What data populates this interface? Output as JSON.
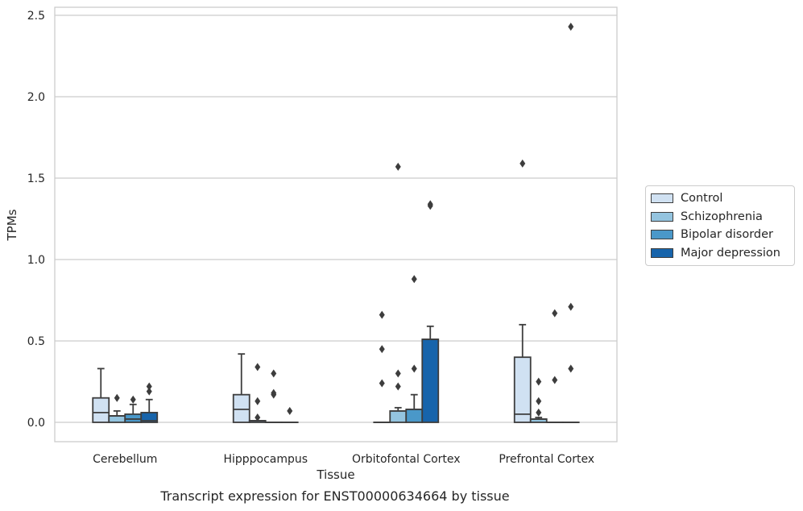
{
  "chart_data": {
    "type": "box",
    "title": "Transcript expression for ENST00000634664 by tissue",
    "xlabel": "Tissue",
    "ylabel": "TPMs",
    "ylim": [
      -0.12,
      2.56
    ],
    "yticks": [
      0.0,
      0.5,
      1.0,
      1.5,
      2.0,
      2.5
    ],
    "ytick_labels": [
      "0.0",
      "0.5",
      "1.0",
      "1.5",
      "2.0",
      "2.5"
    ],
    "grid": true,
    "legend_position": "right",
    "categories": [
      "Cerebellum",
      "Hipppocampus",
      "Orbitofontal Cortex",
      "Prefrontal Cortex"
    ],
    "series": [
      {
        "name": "Control",
        "color": "#d0e1f2",
        "boxes": [
          {
            "q1": 0.0,
            "median": 0.06,
            "q3": 0.15,
            "whisker_low": 0.0,
            "whisker_high": 0.33,
            "outliers": []
          },
          {
            "q1": 0.0,
            "median": 0.08,
            "q3": 0.17,
            "whisker_low": 0.0,
            "whisker_high": 0.42,
            "outliers": []
          },
          {
            "q1": 0.0,
            "median": 0.0,
            "q3": 0.0,
            "whisker_low": 0.0,
            "whisker_high": 0.0,
            "outliers": [
              0.24,
              0.45,
              0.66
            ]
          },
          {
            "q1": 0.0,
            "median": 0.05,
            "q3": 0.4,
            "whisker_low": 0.0,
            "whisker_high": 0.6,
            "outliers": [
              1.59
            ]
          }
        ]
      },
      {
        "name": "Schizophrenia",
        "color": "#94c4df",
        "boxes": [
          {
            "q1": 0.0,
            "median": 0.04,
            "q3": 0.04,
            "whisker_low": 0.0,
            "whisker_high": 0.07,
            "outliers": [
              0.15
            ]
          },
          {
            "q1": 0.0,
            "median": 0.01,
            "q3": 0.01,
            "whisker_low": 0.0,
            "whisker_high": 0.01,
            "outliers": [
              0.03,
              0.13,
              0.34
            ]
          },
          {
            "q1": 0.0,
            "median": 0.07,
            "q3": 0.07,
            "whisker_low": 0.0,
            "whisker_high": 0.09,
            "outliers": [
              0.22,
              0.3,
              1.57
            ]
          },
          {
            "q1": 0.0,
            "median": 0.02,
            "q3": 0.02,
            "whisker_low": 0.0,
            "whisker_high": 0.03,
            "outliers": [
              0.06,
              0.13,
              0.25
            ]
          }
        ]
      },
      {
        "name": "Bipolar disorder",
        "color": "#4a98c9",
        "boxes": [
          {
            "q1": 0.0,
            "median": 0.02,
            "q3": 0.05,
            "whisker_low": 0.0,
            "whisker_high": 0.11,
            "outliers": [
              0.14
            ]
          },
          {
            "q1": 0.0,
            "median": 0.0,
            "q3": 0.0,
            "whisker_low": 0.0,
            "whisker_high": 0.0,
            "outliers": [
              0.17,
              0.18,
              0.3
            ]
          },
          {
            "q1": 0.0,
            "median": 0.08,
            "q3": 0.08,
            "whisker_low": 0.0,
            "whisker_high": 0.17,
            "outliers": [
              0.33,
              0.88
            ]
          },
          {
            "q1": 0.0,
            "median": 0.0,
            "q3": 0.0,
            "whisker_low": 0.0,
            "whisker_high": 0.0,
            "outliers": [
              0.26,
              0.67
            ]
          }
        ]
      },
      {
        "name": "Major depression",
        "color": "#1764ab",
        "boxes": [
          {
            "q1": 0.0,
            "median": 0.01,
            "q3": 0.06,
            "whisker_low": 0.0,
            "whisker_high": 0.14,
            "outliers": [
              0.19,
              0.22
            ]
          },
          {
            "q1": 0.0,
            "median": 0.0,
            "q3": 0.0,
            "whisker_low": 0.0,
            "whisker_high": 0.0,
            "outliers": [
              0.07
            ]
          },
          {
            "q1": 0.0,
            "median": 0.51,
            "q3": 0.51,
            "whisker_low": 0.0,
            "whisker_high": 0.59,
            "outliers": [
              1.33,
              1.34
            ]
          },
          {
            "q1": 0.0,
            "median": 0.0,
            "q3": 0.0,
            "whisker_low": 0.0,
            "whisker_high": 0.0,
            "outliers": [
              0.33,
              0.71,
              2.43
            ]
          }
        ]
      }
    ]
  }
}
